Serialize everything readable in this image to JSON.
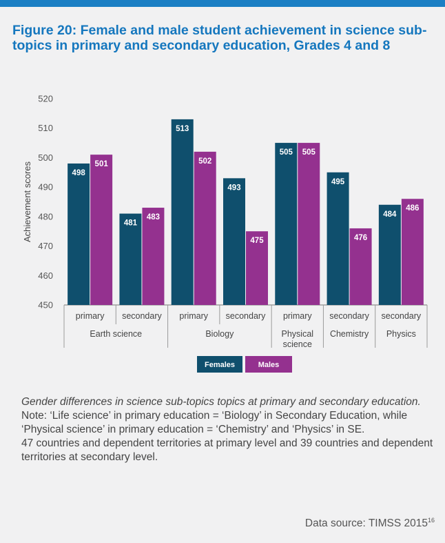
{
  "title": "Figure 20: Female and male student achievement in science sub-topics in primary and secondary education, Grades 4 and 8",
  "chart_data": {
    "type": "bar",
    "ylabel": "Achievement scores",
    "ylim": [
      450,
      520
    ],
    "yticks": [
      450,
      460,
      470,
      480,
      490,
      500,
      510,
      520
    ],
    "categories": [
      "primary",
      "secondary",
      "primary",
      "secondary",
      "primary",
      "secondary",
      "secondary"
    ],
    "groups": [
      {
        "label": "Earth science",
        "count": 2
      },
      {
        "label": "Biology",
        "count": 2
      },
      {
        "label": "Physical science",
        "count": 1
      },
      {
        "label": "Chemistry",
        "count": 1
      },
      {
        "label": "Physics",
        "count": 1
      }
    ],
    "series": [
      {
        "name": "Females",
        "color": "#0f4f6d",
        "values": [
          498,
          481,
          513,
          493,
          505,
          495,
          484
        ]
      },
      {
        "name": "Males",
        "color": "#94318f",
        "values": [
          501,
          483,
          502,
          475,
          505,
          476,
          486
        ]
      }
    ],
    "legend_position": "bottom-center",
    "grid": false
  },
  "notes": {
    "caption": "Gender differences in  science sub-topics topics at primary and secondary education.",
    "note": "Note:  ‘Life science’ in primary education = ‘Biology’  in Secondary Education, while ‘Physical science’ in primary education =  ‘Chemistry’ and ‘Physics’ in SE.",
    "countries": "47 countries and dependent territories at primary level and 39 countries and  dependent territories at secondary level."
  },
  "source": {
    "text": "Data source: TIMSS 2015",
    "footnote": "16"
  }
}
